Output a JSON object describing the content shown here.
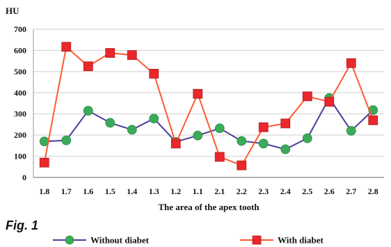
{
  "figure_label": "Fig. 1",
  "chart_data": {
    "type": "line",
    "title": "",
    "ylabel": "HU",
    "xlabel": "The area of the apex tooth",
    "categories": [
      "1.8",
      "1.7",
      "1.6",
      "1.5",
      "1.4",
      "1.3",
      "1.2",
      "1.1",
      "2.1",
      "2.2",
      "2.3",
      "2.4",
      "2.5",
      "2.6",
      "2.7",
      "2.8"
    ],
    "ylim": [
      0,
      700
    ],
    "yticks": [
      0,
      100,
      200,
      300,
      400,
      500,
      600,
      700
    ],
    "grid": true,
    "legend_position": "bottom",
    "series": [
      {
        "name": "Without diabet",
        "color": "#4b3d96",
        "marker": "circle",
        "marker_color": "#3bab5a",
        "values": [
          170,
          175,
          315,
          258,
          225,
          278,
          168,
          198,
          232,
          172,
          160,
          133,
          185,
          375,
          220,
          318
        ]
      },
      {
        "name": "With diabet",
        "color": "#ff5a2e",
        "marker": "square",
        "marker_color": "#e8282b",
        "values": [
          70,
          617,
          525,
          588,
          578,
          490,
          160,
          395,
          97,
          57,
          237,
          255,
          383,
          357,
          540,
          270
        ]
      }
    ]
  }
}
